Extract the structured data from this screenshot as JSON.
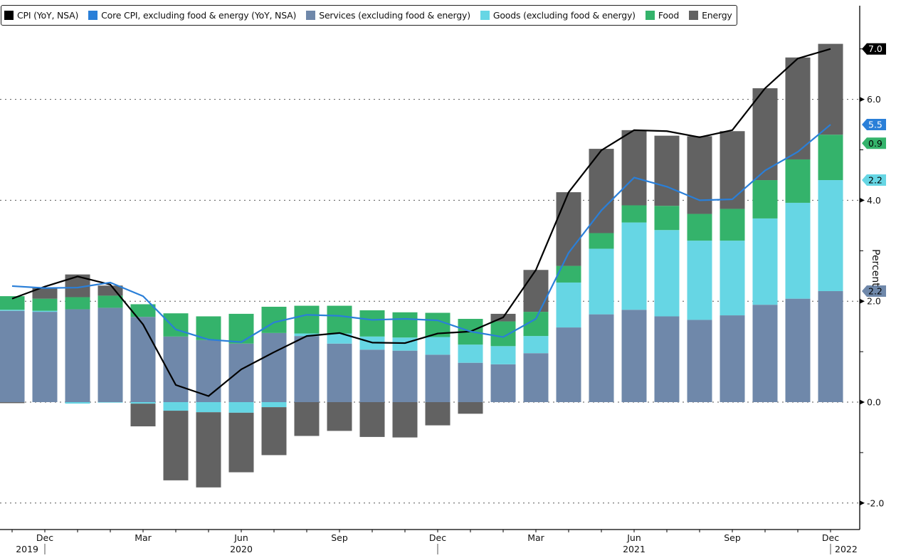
{
  "chart_data": {
    "type": "bar",
    "stacked": true,
    "title": "",
    "ylabel": "Percent",
    "xlabel": "",
    "ylim": [
      -2.5,
      7.9
    ],
    "yticks": [
      -2.0,
      0.0,
      2.0,
      4.0,
      6.0
    ],
    "ytick_labels": [
      "-2.0",
      "0.0",
      "2.0",
      "4.0",
      "6.0"
    ],
    "grid": "horizontal-dotted",
    "legend_position": "top-left",
    "categories": [
      "2019-11",
      "2019-12",
      "2020-01",
      "2020-02",
      "2020-03",
      "2020-04",
      "2020-05",
      "2020-06",
      "2020-07",
      "2020-08",
      "2020-09",
      "2020-10",
      "2020-11",
      "2020-12",
      "2021-01",
      "2021-02",
      "2021-03",
      "2021-04",
      "2021-05",
      "2021-06",
      "2021-07",
      "2021-08",
      "2021-09",
      "2021-10",
      "2021-11",
      "2021-12"
    ],
    "x_tick_labels": [
      {
        "index": 1,
        "label": "Dec",
        "year": "2019"
      },
      {
        "index": 4,
        "label": "Mar"
      },
      {
        "index": 7,
        "label": "Jun",
        "year": "2020"
      },
      {
        "index": 10,
        "label": "Sep"
      },
      {
        "index": 13,
        "label": "Dec"
      },
      {
        "index": 16,
        "label": "Mar"
      },
      {
        "index": 19,
        "label": "Jun",
        "year": "2021"
      },
      {
        "index": 22,
        "label": "Sep"
      },
      {
        "index": 25,
        "label": "Dec",
        "year_after": "2022"
      }
    ],
    "series": [
      {
        "name": "Services (excluding food & energy)",
        "kind": "bar",
        "color": "#6f88aa",
        "values": [
          1.81,
          1.79,
          1.84,
          1.87,
          1.69,
          1.3,
          1.23,
          1.16,
          1.37,
          1.31,
          1.16,
          1.04,
          1.02,
          0.94,
          0.78,
          0.75,
          0.97,
          1.48,
          1.74,
          1.83,
          1.7,
          1.63,
          1.72,
          1.93,
          2.05,
          2.2
        ]
      },
      {
        "name": "Goods (excluding food & energy)",
        "kind": "bar",
        "color": "#66d6e4",
        "values": [
          0.02,
          0.02,
          -0.03,
          -0.01,
          -0.03,
          -0.17,
          -0.2,
          -0.21,
          -0.1,
          0.05,
          0.2,
          0.26,
          0.26,
          0.35,
          0.36,
          0.36,
          0.34,
          0.89,
          1.3,
          1.73,
          1.71,
          1.57,
          1.48,
          1.71,
          1.9,
          2.2
        ]
      },
      {
        "name": "Food",
        "kind": "bar",
        "color": "#34b36b",
        "values": [
          0.27,
          0.24,
          0.24,
          0.24,
          0.25,
          0.46,
          0.47,
          0.59,
          0.52,
          0.55,
          0.55,
          0.52,
          0.5,
          0.48,
          0.51,
          0.49,
          0.48,
          0.33,
          0.31,
          0.34,
          0.48,
          0.53,
          0.63,
          0.76,
          0.86,
          0.9
        ]
      },
      {
        "name": "Energy",
        "kind": "bar",
        "color": "#626262",
        "values": [
          -0.02,
          0.21,
          0.45,
          0.2,
          -0.45,
          -1.38,
          -1.49,
          -1.18,
          -0.95,
          -0.67,
          -0.57,
          -0.69,
          -0.7,
          -0.46,
          -0.23,
          0.15,
          0.83,
          1.46,
          1.67,
          1.49,
          1.39,
          1.54,
          1.54,
          1.82,
          2.02,
          1.8
        ]
      },
      {
        "name": "CPI (YoY, NSA)",
        "kind": "line",
        "color": "#000000",
        "values": [
          2.05,
          2.29,
          2.49,
          2.33,
          1.54,
          0.34,
          0.12,
          0.65,
          0.99,
          1.31,
          1.37,
          1.18,
          1.17,
          1.36,
          1.4,
          1.68,
          2.62,
          4.16,
          4.99,
          5.39,
          5.37,
          5.25,
          5.39,
          6.22,
          6.81,
          7.0
        ]
      },
      {
        "name": "Core CPI, excluding food & energy (YoY, NSA)",
        "kind": "line",
        "color": "#2a7fd8",
        "values": [
          2.3,
          2.26,
          2.27,
          2.37,
          2.1,
          1.44,
          1.24,
          1.19,
          1.58,
          1.73,
          1.71,
          1.63,
          1.65,
          1.62,
          1.4,
          1.29,
          1.65,
          2.96,
          3.8,
          4.45,
          4.27,
          4.0,
          4.02,
          4.59,
          4.96,
          5.5
        ]
      }
    ],
    "last_value_labels": [
      {
        "series": "CPI (YoY, NSA)",
        "text": "7.0",
        "bg": "#000000",
        "fg": "#ffffff",
        "value": 7.0
      },
      {
        "series": "Core CPI, excluding food & energy (YoY, NSA)",
        "text": "5.5",
        "bg": "#2a7fd8",
        "fg": "#ffffff",
        "value": 5.5
      },
      {
        "series": "Food",
        "text": "0.9",
        "bg": "#34b36b",
        "fg": "#000000",
        "value": 5.13
      },
      {
        "series": "Goods (excluding food & energy)",
        "text": "2.2",
        "bg": "#66d6e4",
        "fg": "#000000",
        "value": 4.4
      },
      {
        "series": "Services (excluding food & energy)",
        "text": "2.2",
        "bg": "#6f88aa",
        "fg": "#000000",
        "value": 2.2
      }
    ]
  },
  "legend": [
    {
      "label": "CPI (YoY, NSA)",
      "color": "#000000"
    },
    {
      "label": "Core CPI, excluding food & energy (YoY, NSA)",
      "color": "#2a7fd8"
    },
    {
      "label": "Services (excluding food & energy)",
      "color": "#6f88aa"
    },
    {
      "label": "Goods (excluding food & energy)",
      "color": "#66d6e4"
    },
    {
      "label": "Food",
      "color": "#34b36b"
    },
    {
      "label": "Energy",
      "color": "#626262"
    }
  ]
}
